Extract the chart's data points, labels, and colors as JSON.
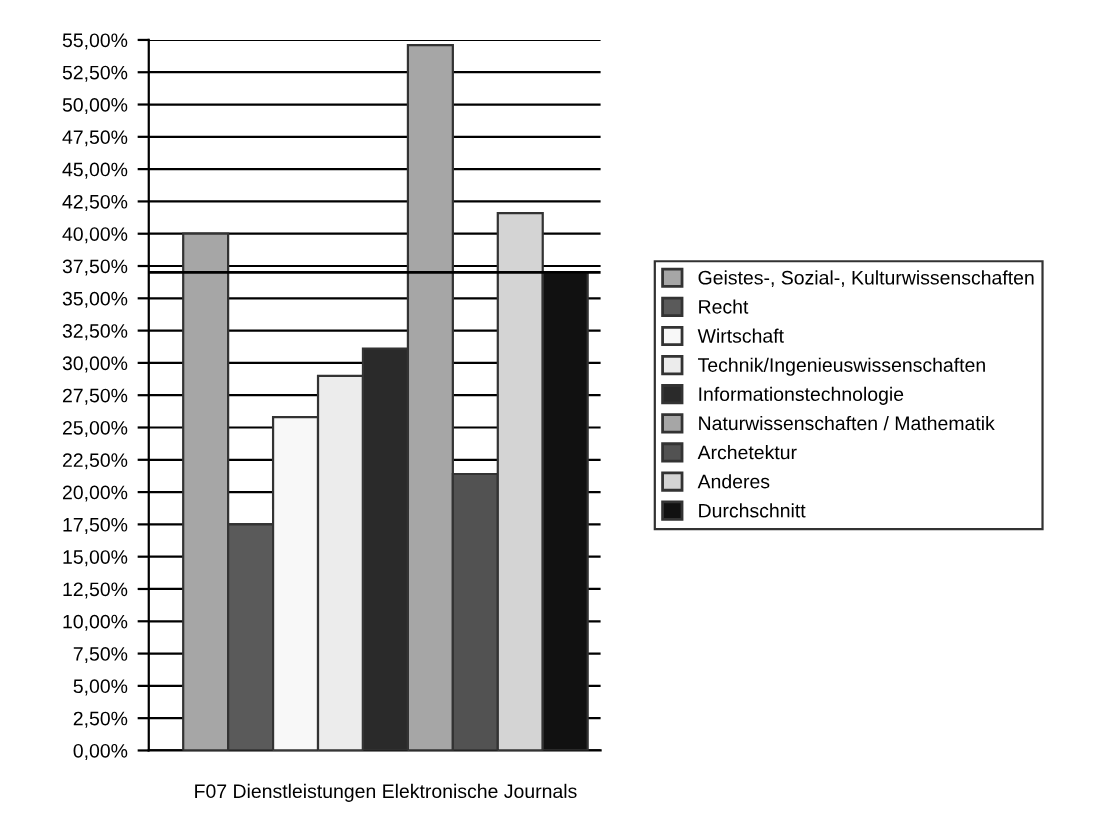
{
  "chart_data": {
    "type": "bar",
    "categories": [
      "F07 Dienstleistungen Elektronische Journals"
    ],
    "series": [
      {
        "name": "Geistes-, Sozial-, Kulturwissenschaften",
        "color": "#a6a6a6",
        "values": [
          40.0
        ]
      },
      {
        "name": "Recht",
        "color": "#5a5a5a",
        "values": [
          17.5
        ]
      },
      {
        "name": "Wirtschaft",
        "color": "#f8f8f8",
        "values": [
          25.8
        ]
      },
      {
        "name": "Technik/Ingenieuswissenschaften",
        "color": "#ececec",
        "values": [
          29.0
        ]
      },
      {
        "name": "Informationstechnologie",
        "color": "#2a2a2a",
        "values": [
          31.1
        ]
      },
      {
        "name": "Naturwissenschaften / Mathematik",
        "color": "#a6a6a6",
        "values": [
          54.6
        ]
      },
      {
        "name": "Archetektur",
        "color": "#525252",
        "values": [
          21.4
        ]
      },
      {
        "name": "Anderes",
        "color": "#d4d4d4",
        "values": [
          41.6
        ]
      },
      {
        "name": "Durchschnitt",
        "color": "#111111",
        "values": [
          37.0
        ]
      }
    ],
    "ylim": [
      0,
      55
    ],
    "yticks": [
      {
        "value": 0,
        "label": "0,00%"
      },
      {
        "value": 2.5,
        "label": "2,50%"
      },
      {
        "value": 5,
        "label": "5,00%"
      },
      {
        "value": 7.5,
        "label": "7,50%"
      },
      {
        "value": 10,
        "label": "10,00%"
      },
      {
        "value": 12.5,
        "label": "12,50%"
      },
      {
        "value": 15,
        "label": "15,00%"
      },
      {
        "value": 17.5,
        "label": "17,50%"
      },
      {
        "value": 20,
        "label": "20,00%"
      },
      {
        "value": 22.5,
        "label": "22,50%"
      },
      {
        "value": 25,
        "label": "25,00%"
      },
      {
        "value": 27.5,
        "label": "27,50%"
      },
      {
        "value": 30,
        "label": "30,00%"
      },
      {
        "value": 32.5,
        "label": "32,50%"
      },
      {
        "value": 35,
        "label": "35,00%"
      },
      {
        "value": 37.5,
        "label": "37,50%"
      },
      {
        "value": 40,
        "label": "40,00%"
      },
      {
        "value": 42.5,
        "label": "42,50%"
      },
      {
        "value": 45,
        "label": "45,00%"
      },
      {
        "value": 47.5,
        "label": "47,50%"
      },
      {
        "value": 50,
        "label": "50,00%"
      },
      {
        "value": 52.5,
        "label": "52,50%"
      },
      {
        "value": 55,
        "label": "55,00%"
      }
    ],
    "ref_lines": [
      {
        "axis": "y",
        "value": 37.0,
        "color": "#000000"
      }
    ],
    "grid": "y",
    "legend": "right"
  }
}
